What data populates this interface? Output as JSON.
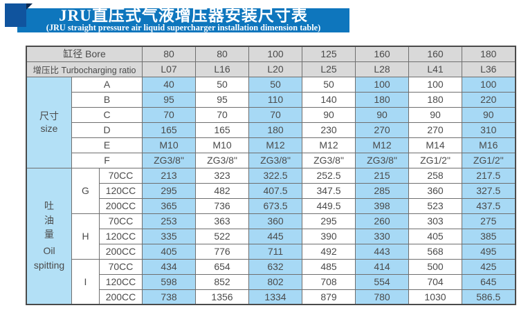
{
  "banner": {
    "title": "JRU直压式气液增压器安装尺寸表",
    "subtitle": "(JRU straight pressure air liquid supercharger installation dimension table)"
  },
  "colors": {
    "banner_blue": "#0e76bd",
    "square_blue": "#10549e",
    "fold_navy": "#0a2a52",
    "header_gray": "#d9d9d9",
    "cell_blue": "#a7d9f5",
    "section_blue": "#b3e0f6",
    "border_gray": "#6e6e6e",
    "text_gray": "#4a4a4a"
  },
  "table": {
    "bore": {
      "label": "缸径 Bore",
      "values": [
        "80",
        "80",
        "100",
        "125",
        "160",
        "160",
        "180"
      ]
    },
    "ratio": {
      "label": "增压比 Turbocharging ratio",
      "values": [
        "L07",
        "L16",
        "L20",
        "L25",
        "L28",
        "L41",
        "L36"
      ]
    },
    "size": {
      "cn": "尺寸",
      "en": "size",
      "rows": [
        {
          "k": "A",
          "v": [
            "40",
            "50",
            "50",
            "50",
            "100",
            "100",
            "100"
          ]
        },
        {
          "k": "B",
          "v": [
            "95",
            "95",
            "110",
            "140",
            "180",
            "180",
            "220"
          ]
        },
        {
          "k": "C",
          "v": [
            "70",
            "70",
            "70",
            "90",
            "90",
            "90",
            "90"
          ]
        },
        {
          "k": "D",
          "v": [
            "165",
            "165",
            "180",
            "230",
            "270",
            "270",
            "310"
          ]
        },
        {
          "k": "E",
          "v": [
            "M10",
            "M10",
            "M12",
            "M12",
            "M12",
            "M14",
            "M16"
          ]
        },
        {
          "k": "F",
          "v": [
            "ZG3/8\"",
            "ZG3/8\"",
            "ZG3/8\"",
            "ZG3/8\"",
            "ZG3/8\"",
            "ZG1/2\"",
            "ZG1/2\""
          ]
        }
      ]
    },
    "oil": {
      "cn": "吐油量",
      "en": "Oil spitting",
      "groups": [
        {
          "k": "G",
          "rows": [
            {
              "k": "70CC",
              "v": [
                "213",
                "323",
                "322.5",
                "252.5",
                "215",
                "258",
                "217.5"
              ]
            },
            {
              "k": "120CC",
              "v": [
                "295",
                "482",
                "407.5",
                "347.5",
                "285",
                "360",
                "327.5"
              ]
            },
            {
              "k": "200CC",
              "v": [
                "365",
                "736",
                "673.5",
                "449.5",
                "398",
                "523",
                "437.5"
              ]
            }
          ]
        },
        {
          "k": "H",
          "rows": [
            {
              "k": "70CC",
              "v": [
                "253",
                "363",
                "360",
                "295",
                "260",
                "303",
                "275"
              ]
            },
            {
              "k": "120CC",
              "v": [
                "335",
                "522",
                "445",
                "390",
                "330",
                "405",
                "385"
              ]
            },
            {
              "k": "200CC",
              "v": [
                "405",
                "776",
                "711",
                "492",
                "443",
                "568",
                "495"
              ]
            }
          ]
        },
        {
          "k": "I",
          "rows": [
            {
              "k": "70CC",
              "v": [
                "434",
                "654",
                "632",
                "485",
                "414",
                "500",
                "425"
              ]
            },
            {
              "k": "120CC",
              "v": [
                "598",
                "852",
                "802",
                "708",
                "554",
                "704",
                "645"
              ]
            },
            {
              "k": "200CC",
              "v": [
                "738",
                "1356",
                "1334",
                "879",
                "780",
                "1030",
                "586.5"
              ]
            }
          ]
        }
      ]
    }
  }
}
